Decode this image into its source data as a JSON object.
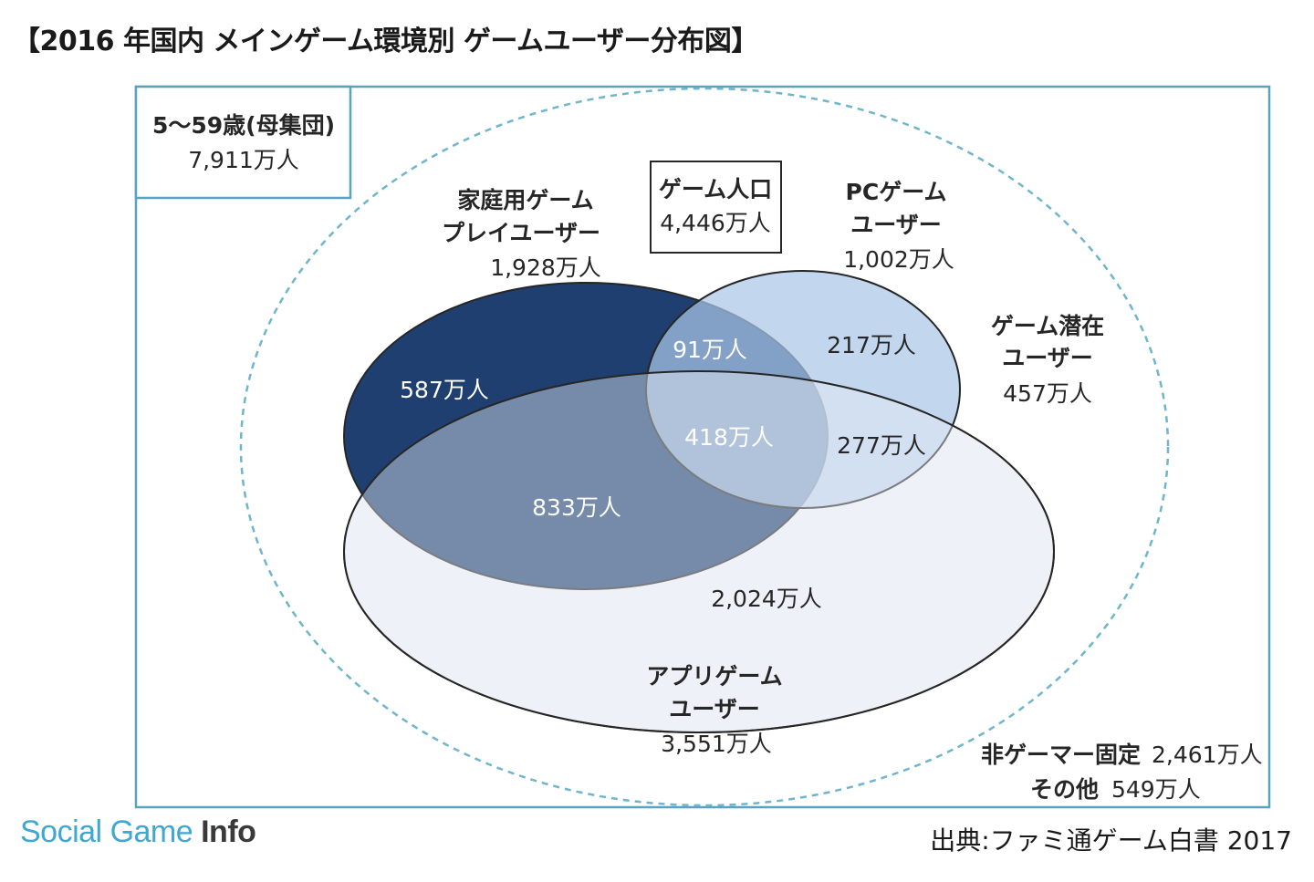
{
  "title": "【2016 年国内 メインゲーム環境別 ゲームユーザー分布図】",
  "population_box": {
    "label": "5〜59歳(母集団)",
    "value": "7,911万人"
  },
  "game_population": {
    "label": "ゲーム人口",
    "value": "4,446万人"
  },
  "home_console_users": {
    "line1": "家庭用ゲーム",
    "line2": "プレイユーザー",
    "value": "1,928万人"
  },
  "pc_users": {
    "line1": "PCゲーム",
    "line2": "ユーザー",
    "value": "1,002万人"
  },
  "potential_users": {
    "line1": "ゲーム潜在",
    "line2": "ユーザー",
    "value": "457万人"
  },
  "app_users": {
    "line1": "アプリゲーム",
    "line2": "ユーザー",
    "value": "3,551万人"
  },
  "segments": {
    "console_only": "587万人",
    "console_pc": "91万人",
    "pc_only": "217万人",
    "all_three": "418万人",
    "pc_app": "277万人",
    "console_app": "833万人",
    "app_only": "2,024万人"
  },
  "non_gamer": {
    "label": "非ゲーマー固定",
    "value": "2,461万人"
  },
  "other": {
    "label": "その他",
    "value": "549万人"
  },
  "brand": {
    "part1": "Social",
    "part2": "Game",
    "part3": "Info"
  },
  "source": "出典:ファミ通ゲーム白書 2017",
  "colors": {
    "console": "#1f3f70",
    "pc": "#aac6e8",
    "app": "#eef2f9",
    "frame": "#5aa3bf",
    "dashed": "#6fb5cc",
    "brand_blue": "#3fa7d2"
  }
}
